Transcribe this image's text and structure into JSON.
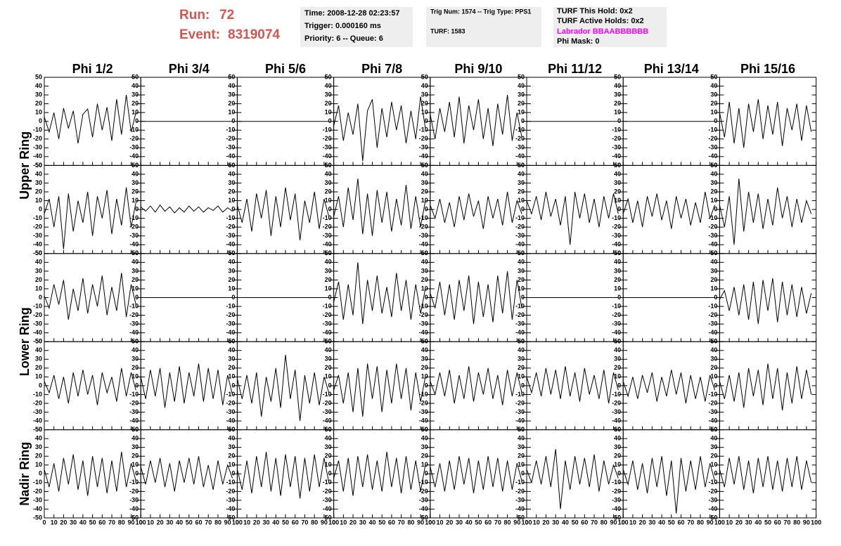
{
  "header": {
    "run_label": "Run:",
    "run": 72,
    "event_label": "Event:",
    "event": 8319074,
    "time": "Time: 2008-12-28 02:23:57",
    "trigger": "Trigger: 0.000160 ms",
    "priority": "Priority: 6 -- Queue: 6",
    "trig": "Trig Num: 1574 -- Trig Type: PPS1",
    "turf": "TURF: 1583",
    "turf_hold": "TURF This Hold: 0x2",
    "turf_active": "TURF Active Holds: 0x2",
    "labrador": "Labrador BBAABBBBBB",
    "phi_mask": "Phi Mask: 0"
  },
  "columns": [
    "Phi 1/2",
    "Phi 3/4",
    "Phi 5/6",
    "Phi 7/8",
    "Phi 9/10",
    "Phi 11/12",
    "Phi 13/14",
    "Phi 15/16"
  ],
  "rows": [
    "Upper Ring",
    "Lower Ring",
    "Nadir Ring"
  ],
  "chart_data": {
    "type": "line",
    "color": "#000000",
    "xlim": [
      0,
      100
    ],
    "ylim": [
      -50,
      50
    ],
    "xticks": [
      0,
      10,
      20,
      30,
      40,
      50,
      60,
      70,
      80,
      90,
      100
    ],
    "yticks": [
      -50,
      -40,
      -30,
      -20,
      -10,
      0,
      10,
      20,
      30,
      40,
      50
    ],
    "x": [
      0,
      5,
      10,
      15,
      20,
      25,
      30,
      35,
      40,
      45,
      50,
      55,
      60,
      65,
      70,
      75,
      80,
      85,
      90,
      95
    ],
    "panels": [
      {
        "values": [
          5,
          -12,
          10,
          -20,
          15,
          -8,
          12,
          -25,
          8,
          14,
          -18,
          20,
          -10,
          16,
          -22,
          25,
          -15,
          30,
          -12,
          10
        ]
      },
      {
        "values": [
          0,
          0,
          0,
          0,
          0,
          0,
          0,
          0,
          0,
          0,
          0,
          0,
          0,
          0,
          0,
          0,
          0,
          0,
          0,
          0
        ]
      },
      {
        "values": [
          0,
          0,
          0,
          0,
          0,
          0,
          0,
          0,
          0,
          0,
          0,
          0,
          0,
          0,
          0,
          0,
          0,
          0,
          0,
          0
        ]
      },
      {
        "values": [
          -5,
          18,
          -22,
          10,
          -15,
          20,
          -45,
          12,
          25,
          -30,
          15,
          -18,
          22,
          -10,
          18,
          -25,
          12,
          -20,
          28,
          -8
        ]
      },
      {
        "values": [
          8,
          -20,
          15,
          -12,
          22,
          -18,
          28,
          -25,
          18,
          -10,
          25,
          -20,
          15,
          -28,
          20,
          -15,
          30,
          -22,
          10,
          -18
        ]
      },
      {
        "values": [
          0,
          0,
          0,
          0,
          0,
          0,
          0,
          0,
          0,
          0,
          0,
          0,
          0,
          0,
          0,
          0,
          0,
          0,
          0,
          0
        ]
      },
      {
        "values": [
          0,
          0,
          0,
          0,
          0,
          0,
          0,
          0,
          0,
          0,
          0,
          0,
          0,
          0,
          0,
          0,
          0,
          0,
          0,
          0
        ]
      },
      {
        "values": [
          10,
          -18,
          22,
          -25,
          15,
          -30,
          20,
          -12,
          25,
          -20,
          18,
          -15,
          22,
          -28,
          15,
          -10,
          20,
          -22,
          18,
          -12
        ]
      },
      {
        "values": [
          -5,
          12,
          -20,
          15,
          -45,
          18,
          -25,
          10,
          -15,
          20,
          -30,
          15,
          -10,
          22,
          -28,
          12,
          -18,
          25,
          -20,
          8
        ]
      },
      {
        "values": [
          3,
          -2,
          4,
          -3,
          5,
          -2,
          3,
          -4,
          2,
          -3,
          4,
          -2,
          3,
          -3,
          2,
          -1,
          4,
          -3,
          2,
          -2
        ]
      },
      {
        "values": [
          5,
          -15,
          12,
          -25,
          18,
          -10,
          22,
          -30,
          15,
          -20,
          25,
          -12,
          18,
          -35,
          10,
          -15,
          20,
          -22,
          12,
          -8
        ]
      },
      {
        "values": [
          -8,
          15,
          -20,
          25,
          -12,
          35,
          -28,
          18,
          -30,
          22,
          -15,
          20,
          -25,
          12,
          -18,
          28,
          -22,
          15,
          -20,
          10
        ]
      },
      {
        "values": [
          5,
          -10,
          12,
          -15,
          8,
          -20,
          15,
          -12,
          18,
          -8,
          10,
          -22,
          15,
          -10,
          12,
          -18,
          20,
          -15,
          10,
          -5
        ]
      },
      {
        "values": [
          10,
          -5,
          15,
          -12,
          20,
          -8,
          12,
          -18,
          15,
          -40,
          20,
          -10,
          18,
          -15,
          12,
          -20,
          15,
          -10,
          18,
          -5
        ]
      },
      {
        "values": [
          -5,
          12,
          -15,
          10,
          -20,
          15,
          -8,
          18,
          -12,
          10,
          -22,
          15,
          -10,
          12,
          -18,
          8,
          -15,
          20,
          -10,
          5
        ]
      },
      {
        "values": [
          5,
          -20,
          15,
          -40,
          35,
          -25,
          20,
          -15,
          18,
          -22,
          12,
          -18,
          25,
          -10,
          15,
          -20,
          12,
          -15,
          10,
          -5
        ]
      },
      {
        "values": [
          2,
          -12,
          15,
          -8,
          20,
          -25,
          10,
          -15,
          22,
          -18,
          15,
          -10,
          25,
          -20,
          12,
          -15,
          28,
          -22,
          15,
          -8
        ]
      },
      {
        "values": [
          0,
          0,
          0,
          0,
          0,
          0,
          0,
          0,
          0,
          0,
          0,
          0,
          0,
          0,
          0,
          0,
          0,
          0,
          0,
          0
        ]
      },
      {
        "values": [
          0,
          0,
          0,
          0,
          0,
          0,
          0,
          0,
          0,
          0,
          0,
          0,
          0,
          0,
          0,
          0,
          0,
          0,
          0,
          0
        ]
      },
      {
        "values": [
          -5,
          18,
          -25,
          15,
          -20,
          40,
          -30,
          20,
          -15,
          25,
          -18,
          12,
          -22,
          28,
          -15,
          20,
          -25,
          15,
          -18,
          10
        ]
      },
      {
        "values": [
          5,
          -12,
          18,
          -20,
          15,
          -25,
          20,
          -15,
          25,
          -30,
          18,
          -22,
          15,
          -28,
          25,
          -18,
          30,
          -25,
          20,
          -12
        ]
      },
      {
        "values": [
          0,
          0,
          0,
          0,
          0,
          0,
          0,
          0,
          0,
          0,
          0,
          0,
          0,
          0,
          0,
          0,
          0,
          0,
          0,
          0
        ]
      },
      {
        "values": [
          0,
          0,
          0,
          0,
          0,
          0,
          0,
          0,
          0,
          0,
          0,
          0,
          0,
          0,
          0,
          0,
          0,
          0,
          0,
          0
        ]
      },
      {
        "values": [
          -2,
          8,
          -15,
          12,
          -20,
          15,
          -25,
          18,
          -30,
          20,
          -15,
          22,
          -28,
          18,
          -20,
          15,
          -22,
          12,
          -18,
          5
        ]
      },
      {
        "values": [
          5,
          -8,
          12,
          -15,
          10,
          -20,
          15,
          -12,
          18,
          -10,
          12,
          -22,
          15,
          -8,
          10,
          -18,
          20,
          -12,
          15,
          -5
        ]
      },
      {
        "values": [
          10,
          -15,
          18,
          -12,
          20,
          -25,
          15,
          -18,
          22,
          -20,
          15,
          -12,
          25,
          -18,
          20,
          -15,
          18,
          -22,
          12,
          -10
        ]
      },
      {
        "values": [
          8,
          -15,
          12,
          -20,
          15,
          -35,
          10,
          -18,
          20,
          -25,
          35,
          -15,
          18,
          -40,
          12,
          -20,
          15,
          -22,
          10,
          -8
        ]
      },
      {
        "values": [
          -5,
          12,
          -20,
          15,
          -30,
          20,
          -35,
          25,
          -15,
          22,
          -30,
          18,
          -20,
          25,
          -15,
          20,
          -28,
          15,
          -18,
          10
        ]
      },
      {
        "values": [
          5,
          -10,
          15,
          -12,
          18,
          -20,
          12,
          -15,
          22,
          -18,
          15,
          -10,
          20,
          -15,
          12,
          -22,
          18,
          -12,
          15,
          -8
        ]
      },
      {
        "values": [
          10,
          -8,
          15,
          -12,
          20,
          -10,
          18,
          -15,
          22,
          -12,
          15,
          -18,
          20,
          -10,
          12,
          -15,
          18,
          -20,
          15,
          -5
        ]
      },
      {
        "values": [
          5,
          -12,
          10,
          -15,
          12,
          -8,
          15,
          -18,
          10,
          -12,
          18,
          -10,
          15,
          -20,
          12,
          -15,
          10,
          -18,
          12,
          -5
        ]
      },
      {
        "values": [
          5,
          -15,
          12,
          -18,
          15,
          -25,
          20,
          -12,
          18,
          -22,
          25,
          -15,
          20,
          -28,
          15,
          -20,
          22,
          -15,
          18,
          -10
        ]
      },
      {
        "values": [
          5,
          -15,
          12,
          -20,
          18,
          -12,
          22,
          -18,
          15,
          -25,
          20,
          -15,
          18,
          -22,
          15,
          -20,
          25,
          -15,
          12,
          -8
        ]
      },
      {
        "values": [
          8,
          -12,
          15,
          -10,
          18,
          -15,
          12,
          -20,
          15,
          -10,
          18,
          -12,
          20,
          -15,
          10,
          -18,
          15,
          -12,
          10,
          -5
        ]
      },
      {
        "values": [
          5,
          -18,
          15,
          -22,
          20,
          -15,
          25,
          -20,
          18,
          -25,
          22,
          -15,
          20,
          -28,
          18,
          -20,
          22,
          -15,
          18,
          -10
        ]
      },
      {
        "values": [
          -5,
          15,
          -20,
          18,
          -25,
          20,
          -15,
          22,
          -18,
          15,
          -20,
          25,
          -15,
          18,
          -22,
          20,
          -18,
          15,
          -20,
          10
        ]
      },
      {
        "values": [
          8,
          -15,
          12,
          -20,
          15,
          -18,
          20,
          -12,
          18,
          -22,
          15,
          -18,
          20,
          -15,
          18,
          -20,
          15,
          -18,
          12,
          -8
        ]
      },
      {
        "values": [
          5,
          -10,
          15,
          -12,
          20,
          -15,
          28,
          -40,
          15,
          -18,
          20,
          -12,
          18,
          -15,
          22,
          -20,
          15,
          -12,
          10,
          -5
        ]
      },
      {
        "values": [
          5,
          -12,
          15,
          -18,
          12,
          -22,
          18,
          -15,
          20,
          -25,
          15,
          -45,
          18,
          -20,
          15,
          -18,
          20,
          -15,
          12,
          -8
        ]
      },
      {
        "values": [
          5,
          -15,
          18,
          -12,
          20,
          -18,
          15,
          -22,
          18,
          -15,
          20,
          -18,
          15,
          -20,
          18,
          -15,
          20,
          -18,
          15,
          -10
        ]
      }
    ]
  }
}
